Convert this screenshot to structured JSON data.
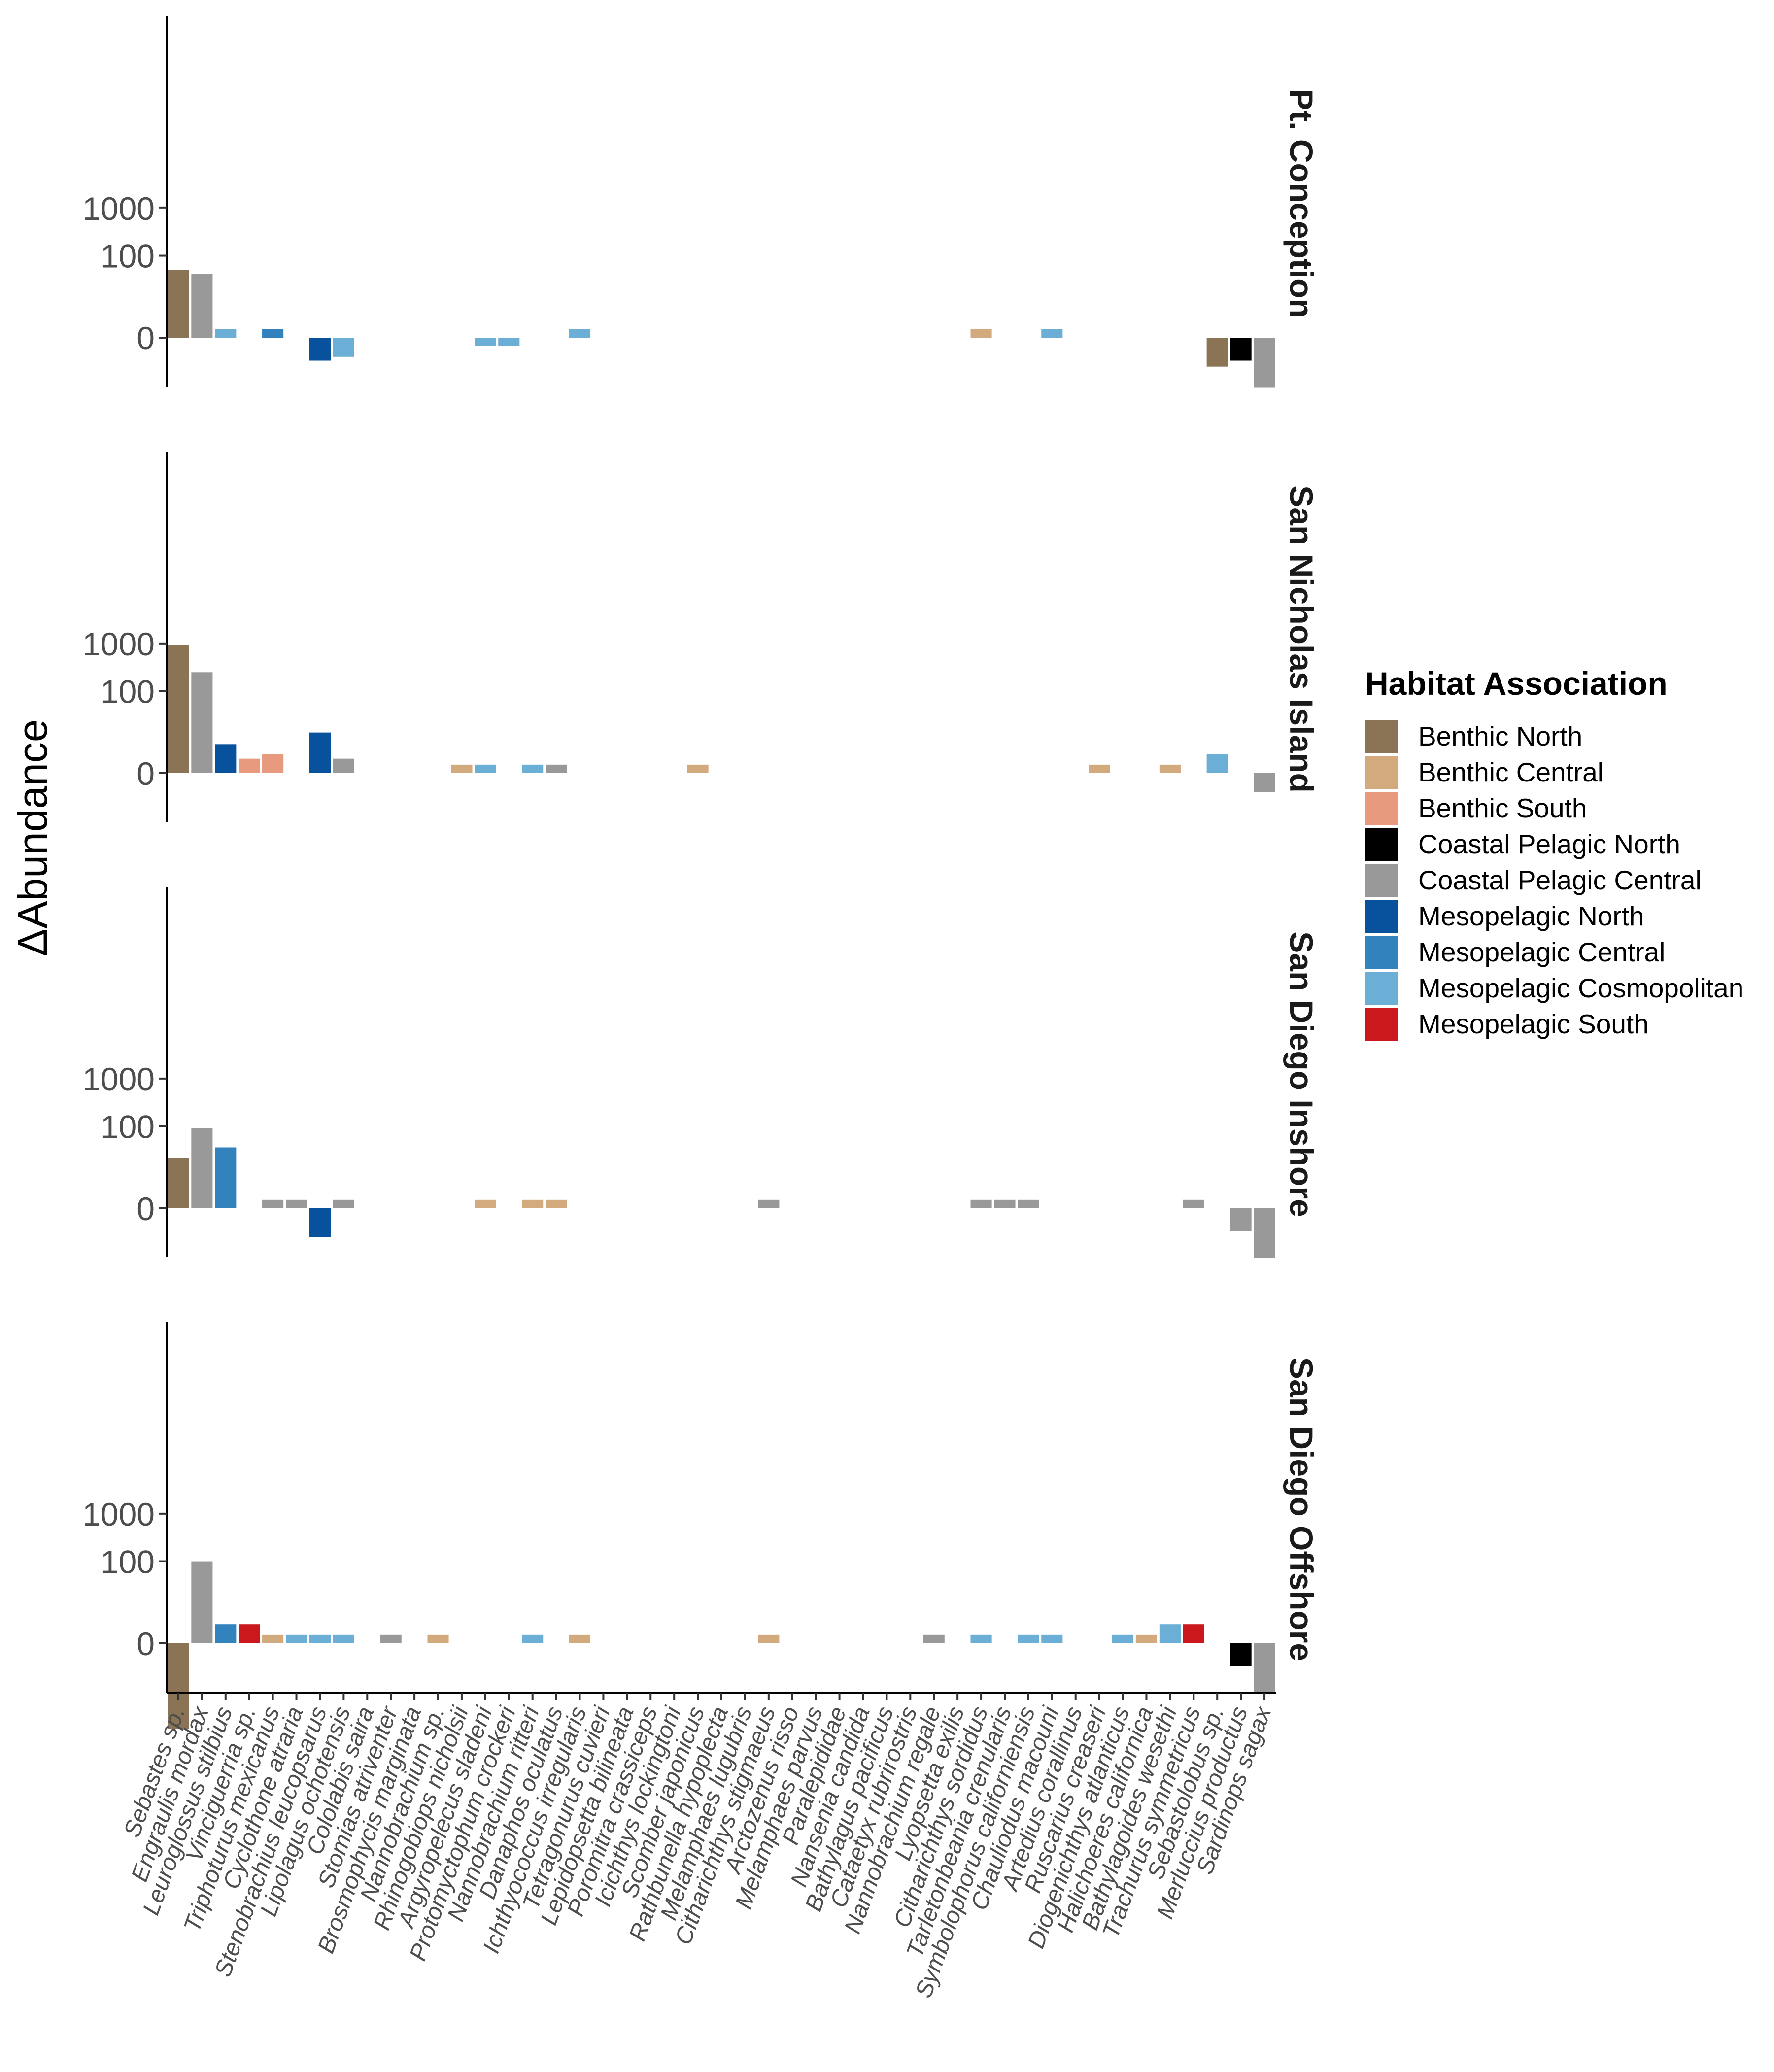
{
  "chart_data": {
    "type": "bar",
    "ylabel": "ΔAbundance",
    "y_scale": "pseudo-log (signed)",
    "y_ticks": [
      0,
      100,
      1000
    ],
    "y_tick_labels": [
      "0",
      "100",
      "1000"
    ],
    "ylim": [
      -150,
      1000
    ],
    "categories": [
      "Sebastes sp.",
      "Engraulis mordax",
      "Leuroglossus stilbius",
      "Vinciguerria sp.",
      "Triphoturus mexicanus",
      "Cyclothone atraria",
      "Stenobrachius leucopsarus",
      "Lipolagus ochotensis",
      "Cololabis saira",
      "Stomias atriventer",
      "Brosmophycis marginata",
      "Nannobrachium sp.",
      "Rhinogobiops nicholsii",
      "Argyropelecus sladeni",
      "Protomyctophum crockeri",
      "Nannobrachium ritteri",
      "Danaphos oculatus",
      "Ichthyococcus irregularis",
      "Tetragonurus cuvieri",
      "Lepidopsetta bilineata",
      "Poromitra crassiceps",
      "Icichthys lockingtoni",
      "Scomber japonicus",
      "Rathbunella hypoplecta",
      "Melamphaes lugubris",
      "Citharichthys stigmaeus",
      "Arctozenus risso",
      "Melamphaes parvus",
      "Paralepididae",
      "Nansenia candida",
      "Bathylagus pacificus",
      "Cataetyx rubrirostris",
      "Nannobrachium regale",
      "Lyopsetta exilis",
      "Citharichthys sordidus",
      "Tarletonbeania crenularis",
      "Symbolophorus californiensis",
      "Chauliodus macouni",
      "Artedius corallinus",
      "Ruscarius creaseri",
      "Diogenichthys atlanticus",
      "Halichoeres californica",
      "Bathylagoides wesethi",
      "Trachurus symmetricus",
      "Sebastolobus sp.",
      "Merluccius productus",
      "Sardinops sagax"
    ],
    "legend": {
      "title": "Habitat Association",
      "position": "right",
      "entries": [
        {
          "name": "Benthic North",
          "color": "#8B7355"
        },
        {
          "name": "Benthic Central",
          "color": "#D2AA7D"
        },
        {
          "name": "Benthic South",
          "color": "#E89A7F"
        },
        {
          "name": "Coastal Pelagic North",
          "color": "#000000"
        },
        {
          "name": "Coastal Pelagic Central",
          "color": "#999999"
        },
        {
          "name": "Mesopelagic North",
          "color": "#08519C"
        },
        {
          "name": "Mesopelagic Central",
          "color": "#3182BD"
        },
        {
          "name": "Mesopelagic Cosmopolitan",
          "color": "#6BAED6"
        },
        {
          "name": "Mesopelagic South",
          "color": "#CB181D"
        }
      ]
    },
    "panels": [
      {
        "label": "Pt. Conception",
        "bars": [
          {
            "species": "Sebastes sp.",
            "value": 50,
            "color": "#8B7355"
          },
          {
            "species": "Engraulis mordax",
            "value": 40,
            "color": "#999999"
          },
          {
            "species": "Leuroglossus stilbius",
            "value": 1,
            "color": "#6BAED6"
          },
          {
            "species": "Triphoturus mexicanus",
            "value": 1,
            "color": "#3182BD"
          },
          {
            "species": "Stenobrachius leucopsarus",
            "value": -4,
            "color": "#08519C"
          },
          {
            "species": "Lipolagus ochotensis",
            "value": -3,
            "color": "#6BAED6"
          },
          {
            "species": "Argyropelecus sladeni",
            "value": -1,
            "color": "#6BAED6"
          },
          {
            "species": "Protomyctophum crockeri",
            "value": -1,
            "color": "#6BAED6"
          },
          {
            "species": "Ichthyococcus irregularis",
            "value": 1,
            "color": "#6BAED6"
          },
          {
            "species": "Citharichthys sordidus",
            "value": 1,
            "color": "#D2AA7D"
          },
          {
            "species": "Chauliodus macouni",
            "value": 1,
            "color": "#6BAED6"
          },
          {
            "species": "Sebastolobus sp.",
            "value": -6,
            "color": "#8B7355"
          },
          {
            "species": "Merluccius productus",
            "value": -4,
            "color": "#000000"
          },
          {
            "species": "Sardinops sagax",
            "value": -20,
            "color": "#999999"
          }
        ]
      },
      {
        "label": "San Nicholas Island",
        "bars": [
          {
            "species": "Sebastes sp.",
            "value": 930,
            "color": "#8B7355"
          },
          {
            "species": "Engraulis mordax",
            "value": 250,
            "color": "#999999"
          },
          {
            "species": "Leuroglossus stilbius",
            "value": 6,
            "color": "#08519C"
          },
          {
            "species": "Vinciguerria sp.",
            "value": 2,
            "color": "#E89A7F"
          },
          {
            "species": "Triphoturus mexicanus",
            "value": 3,
            "color": "#E89A7F"
          },
          {
            "species": "Stenobrachius leucopsarus",
            "value": 12,
            "color": "#08519C"
          },
          {
            "species": "Lipolagus ochotensis",
            "value": 2,
            "color": "#999999"
          },
          {
            "species": "Rhinogobiops nicholsii",
            "value": 1,
            "color": "#D2AA7D"
          },
          {
            "species": "Argyropelecus sladeni",
            "value": 1,
            "color": "#6BAED6"
          },
          {
            "species": "Nannobrachium ritteri",
            "value": 1,
            "color": "#6BAED6"
          },
          {
            "species": "Danaphos oculatus",
            "value": 1,
            "color": "#999999"
          },
          {
            "species": "Scomber japonicus",
            "value": 1,
            "color": "#D2AA7D"
          },
          {
            "species": "Ruscarius creaseri",
            "value": 1,
            "color": "#D2AA7D"
          },
          {
            "species": "Bathylagoides wesethi",
            "value": 1,
            "color": "#D2AA7D"
          },
          {
            "species": "Sebastolobus sp.",
            "value": 3,
            "color": "#6BAED6"
          },
          {
            "species": "Sardinops sagax",
            "value": -3,
            "color": "#999999"
          }
        ]
      },
      {
        "label": "San Diego Inshore",
        "bars": [
          {
            "species": "Sebastes sp.",
            "value": 20,
            "color": "#8B7355"
          },
          {
            "species": "Engraulis mordax",
            "value": 90,
            "color": "#999999"
          },
          {
            "species": "Leuroglossus stilbius",
            "value": 35,
            "color": "#3182BD"
          },
          {
            "species": "Triphoturus mexicanus",
            "value": 1,
            "color": "#999999"
          },
          {
            "species": "Cyclothone atraria",
            "value": 1,
            "color": "#999999"
          },
          {
            "species": "Stenobrachius leucopsarus",
            "value": -6,
            "color": "#08519C"
          },
          {
            "species": "Lipolagus ochotensis",
            "value": 1,
            "color": "#999999"
          },
          {
            "species": "Argyropelecus sladeni",
            "value": 1,
            "color": "#D2AA7D"
          },
          {
            "species": "Nannobrachium ritteri",
            "value": 1,
            "color": "#D2AA7D"
          },
          {
            "species": "Danaphos oculatus",
            "value": 1,
            "color": "#D2AA7D"
          },
          {
            "species": "Citharichthys stigmaeus",
            "value": 1,
            "color": "#999999"
          },
          {
            "species": "Citharichthys sordidus",
            "value": 1,
            "color": "#999999"
          },
          {
            "species": "Tarletonbeania crenularis",
            "value": 1,
            "color": "#999999"
          },
          {
            "species": "Symbolophorus californiensis",
            "value": 1,
            "color": "#999999"
          },
          {
            "species": "Trachurus symmetricus",
            "value": 1,
            "color": "#999999"
          },
          {
            "species": "Merluccius productus",
            "value": -4,
            "color": "#999999"
          },
          {
            "species": "Sardinops sagax",
            "value": -20,
            "color": "#999999"
          }
        ]
      },
      {
        "label": "San Diego Offshore",
        "bars": [
          {
            "species": "Sebastes sp.",
            "value": -120,
            "color": "#8B7355"
          },
          {
            "species": "Engraulis mordax",
            "value": 100,
            "color": "#999999"
          },
          {
            "species": "Leuroglossus stilbius",
            "value": 3,
            "color": "#3182BD"
          },
          {
            "species": "Vinciguerria sp.",
            "value": 3,
            "color": "#CB181D"
          },
          {
            "species": "Triphoturus mexicanus",
            "value": 1,
            "color": "#D2AA7D"
          },
          {
            "species": "Cyclothone atraria",
            "value": 1,
            "color": "#6BAED6"
          },
          {
            "species": "Stenobrachius leucopsarus",
            "value": 1,
            "color": "#6BAED6"
          },
          {
            "species": "Lipolagus ochotensis",
            "value": 1,
            "color": "#6BAED6"
          },
          {
            "species": "Stomias atriventer",
            "value": 1,
            "color": "#999999"
          },
          {
            "species": "Nannobrachium sp.",
            "value": 1,
            "color": "#D2AA7D"
          },
          {
            "species": "Nannobrachium ritteri",
            "value": 1,
            "color": "#6BAED6"
          },
          {
            "species": "Ichthyococcus irregularis",
            "value": 1,
            "color": "#D2AA7D"
          },
          {
            "species": "Citharichthys stigmaeus",
            "value": 1,
            "color": "#D2AA7D"
          },
          {
            "species": "Nannobrachium regale",
            "value": 1,
            "color": "#999999"
          },
          {
            "species": "Citharichthys sordidus",
            "value": 1,
            "color": "#6BAED6"
          },
          {
            "species": "Symbolophorus californiensis",
            "value": 1,
            "color": "#6BAED6"
          },
          {
            "species": "Chauliodus macouni",
            "value": 1,
            "color": "#6BAED6"
          },
          {
            "species": "Diogenichthys atlanticus",
            "value": 1,
            "color": "#6BAED6"
          },
          {
            "species": "Halichoeres californica",
            "value": 1,
            "color": "#D2AA7D"
          },
          {
            "species": "Bathylagoides wesethi",
            "value": 3,
            "color": "#6BAED6"
          },
          {
            "species": "Trachurus symmetricus",
            "value": 3,
            "color": "#CB181D"
          },
          {
            "species": "Merluccius productus",
            "value": -4,
            "color": "#000000"
          },
          {
            "species": "Sardinops sagax",
            "value": -20,
            "color": "#999999"
          }
        ]
      }
    ]
  }
}
